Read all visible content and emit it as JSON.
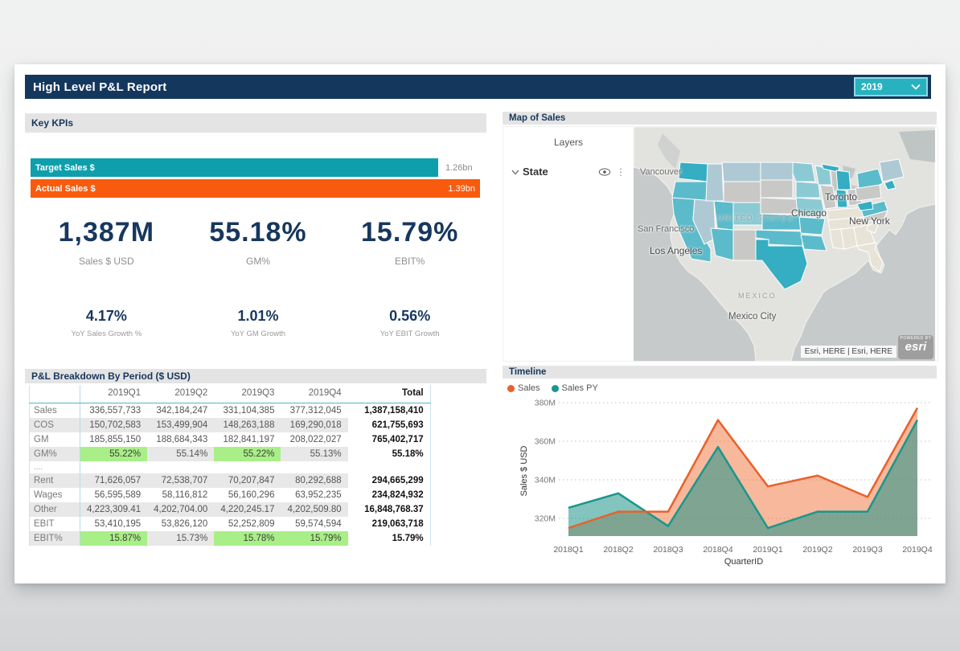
{
  "header": {
    "title": "High Level P&L Report",
    "year_selector": {
      "value": "2019"
    }
  },
  "kpi_section": {
    "title": "Key KPIs",
    "bars": [
      {
        "label": "Target Sales $",
        "value_label": "1.26bn",
        "value": 1.26,
        "color": "#0f9fac",
        "value_inside": false
      },
      {
        "label": "Actual Sales $",
        "value_label": "1.39bn",
        "value": 1.39,
        "color": "#f85b0e",
        "value_inside": true
      }
    ],
    "primary": [
      {
        "value": "1,387M",
        "label": "Sales $ USD"
      },
      {
        "value": "55.18%",
        "label": "GM%"
      },
      {
        "value": "15.79%",
        "label": "EBIT%"
      }
    ],
    "secondary": [
      {
        "value": "4.17%",
        "label": "YoY Sales Growth %"
      },
      {
        "value": "1.01%",
        "label": "YoY GM Growth"
      },
      {
        "value": "0.56%",
        "label": "YoY EBIT Growth"
      }
    ]
  },
  "pnl_table": {
    "title": "P&L Breakdown By Period ($ USD)",
    "columns": [
      "",
      "2019Q1",
      "2019Q2",
      "2019Q3",
      "2019Q4",
      "Total"
    ],
    "highlight_color": "#a9ef87",
    "rows": [
      {
        "label": "Sales",
        "values": [
          "336,557,733",
          "342,184,247",
          "331,104,385",
          "377,312,045"
        ],
        "total": "1,387,158,410",
        "zebra": false
      },
      {
        "label": "COS",
        "values": [
          "150,702,583",
          "153,499,904",
          "148,263,188",
          "169,290,018"
        ],
        "total": "621,755,693",
        "zebra": true
      },
      {
        "label": "GM",
        "values": [
          "185,855,150",
          "188,684,343",
          "182,841,197",
          "208,022,027"
        ],
        "total": "765,402,717",
        "zebra": false
      },
      {
        "label": "GM%",
        "values": [
          "55.22%",
          "55.14%",
          "55.22%",
          "55.13%"
        ],
        "total": "55.18%",
        "zebra": true,
        "highlights": [
          1,
          0,
          1,
          0
        ]
      },
      {
        "label": "....",
        "spacer": true
      },
      {
        "label": "Rent",
        "values": [
          "71,626,057",
          "72,538,707",
          "70,207,847",
          "80,292,688"
        ],
        "total": "294,665,299",
        "zebra": true
      },
      {
        "label": "Wages",
        "values": [
          "56,595,589",
          "58,116,812",
          "56,160,296",
          "63,952,235"
        ],
        "total": "234,824,932",
        "zebra": false
      },
      {
        "label": "Other",
        "values": [
          "4,223,309.41",
          "4,202,704.00",
          "4,220,245.17",
          "4,202,509.80"
        ],
        "total": "16,848,768.37",
        "zebra": true
      },
      {
        "label": "EBIT",
        "values": [
          "53,410,195",
          "53,826,120",
          "52,252,809",
          "59,574,594"
        ],
        "total": "219,063,718",
        "zebra": false
      },
      {
        "label": "EBIT%",
        "values": [
          "15.87%",
          "15.73%",
          "15.78%",
          "15.79%"
        ],
        "total": "15.79%",
        "zebra": true,
        "highlights": [
          1,
          0,
          1,
          1
        ]
      }
    ]
  },
  "map_panel": {
    "title": "Map of Sales",
    "layers_title": "Layers",
    "layer_name": "State",
    "cities": [
      {
        "name": "Vancouver"
      },
      {
        "name": "Toronto"
      },
      {
        "name": "Chicago"
      },
      {
        "name": "New York"
      },
      {
        "name": "San Francisco"
      },
      {
        "name": "Los Angeles"
      },
      {
        "name": "Mexico City"
      }
    ],
    "region_labels": [
      "UNITED STATES",
      "MEXICO"
    ],
    "attribution": "Esri, HERE | Esri, HERE",
    "logo_tagline": "POWERED BY",
    "logo": "esri",
    "palette": {
      "dark": "#35adc2",
      "med": "#5cbbca",
      "light": "#8ccad3",
      "pale": "#aec9d3",
      "gray": "#c8c8c6",
      "beige": "#e7e3d7"
    },
    "state_tones": {
      "wa": "dark",
      "or": "med",
      "ca": "med",
      "nv": "pale",
      "id": "pale",
      "mt": "pale",
      "wy": "gray",
      "ut": "med",
      "co": "light",
      "az": "med",
      "nm": "gray",
      "nd": "pale",
      "sd": "gray",
      "ne": "gray",
      "ks": "med",
      "ok": "med",
      "tx": "dark",
      "mn": "light",
      "ia": "light",
      "mo": "light",
      "ar": "med",
      "la": "med",
      "wi": "light",
      "il": "gray",
      "miup": "dark",
      "mi": "dark",
      "in": "dark",
      "oh": "gray",
      "ky": "beige",
      "tn": "beige",
      "ms": "beige",
      "al": "beige",
      "ga": "beige",
      "fl": "beige",
      "sc": "beige",
      "nc": "gray",
      "va": "med",
      "wv": "dark",
      "pa": "gray",
      "ny": "med",
      "neweng": "pale",
      "ct": "dark"
    }
  },
  "timeline": {
    "title": "Timeline"
  },
  "chart_data": {
    "type": "area",
    "title": "Timeline",
    "xlabel": "QuarterID",
    "ylabel": "Sales $ USD",
    "categories": [
      "2018Q1",
      "2018Q2",
      "2018Q3",
      "2018Q4",
      "2019Q1",
      "2019Q2",
      "2019Q3",
      "2019Q4"
    ],
    "series": [
      {
        "name": "Sales",
        "color": "#e8612c",
        "fill": "#f07138",
        "values": [
          315,
          323.5,
          323.5,
          371,
          336.6,
          342.2,
          331.1,
          377.3
        ]
      },
      {
        "name": "Sales PY",
        "color": "#1b968c",
        "fill": "#1e948a",
        "values": [
          325.5,
          333,
          316,
          357,
          315,
          323.5,
          323.5,
          371
        ]
      }
    ],
    "yticks": [
      320,
      340,
      360,
      380
    ],
    "ytick_labels": [
      "320M",
      "340M",
      "360M",
      "380M"
    ],
    "ylim": [
      310,
      385
    ],
    "grid": "dotted",
    "legend_position": "top-left"
  }
}
